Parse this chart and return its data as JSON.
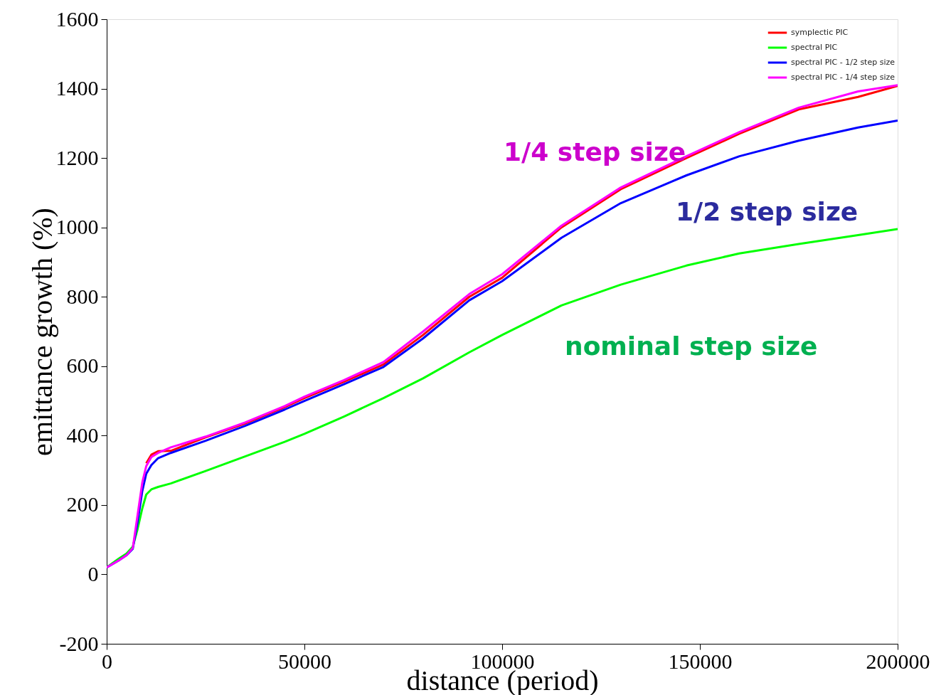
{
  "chart_data": {
    "type": "line",
    "xlabel": "distance (period)",
    "ylabel": "emittance growth (%)",
    "xlim": [
      0,
      200000
    ],
    "xticks": [
      0,
      {
        "value": 50000,
        "label": "50000"
      },
      {
        "value": 100000,
        "label": "100000"
      },
      {
        "value": 150000,
        "label": "150000"
      },
      {
        "value": 200000,
        "label": "200000"
      }
    ],
    "ylim": [
      -200,
      1600
    ],
    "yticks": [
      -200,
      0,
      200,
      400,
      600,
      800,
      {
        "value": 1000,
        "label": "1000"
      },
      {
        "value": 1200,
        "label": "1200"
      },
      {
        "value": 1400,
        "label": "1400"
      },
      {
        "value": 1600,
        "label": "1600"
      }
    ],
    "grid": false,
    "legend": "top right",
    "line_style": "solid",
    "marker": "none",
    "x": [
      0,
      3000,
      5000,
      6600,
      7800,
      9000,
      10000,
      11300,
      13000,
      16200,
      25000,
      35000,
      45000,
      50000,
      60000,
      70000,
      80000,
      91700,
      100000,
      115000,
      130000,
      146600,
      160000,
      175000,
      190000,
      200000
    ],
    "series": [
      {
        "name": "symplectic PIC",
        "color": "#ff0000",
        "values": [
          null,
          null,
          null,
          null,
          null,
          null,
          320,
          345,
          355,
          356,
          395,
          435,
          482,
          508,
          555,
          605,
          690,
          800,
          855,
          1000,
          1110,
          1200,
          1270,
          1340,
          1376,
          1408
        ]
      },
      {
        "name": "spectral PIC",
        "color": "#00ff00",
        "values": [
          20,
          45,
          60,
          80,
          130,
          190,
          230,
          245,
          252,
          262,
          298,
          340,
          382,
          405,
          455,
          508,
          565,
          640,
          690,
          775,
          835,
          890,
          925,
          952,
          978,
          995
        ]
      },
      {
        "name": "spectral PIC - 1/2 step size",
        "color": "#0000ff",
        "values": [
          20,
          40,
          55,
          74,
          150,
          240,
          290,
          315,
          335,
          350,
          385,
          428,
          475,
          500,
          548,
          598,
          680,
          790,
          845,
          970,
          1070,
          1150,
          1205,
          1250,
          1288,
          1308
        ]
      },
      {
        "name": "spectral PIC - 1/4 step size",
        "color": "#ff00ff",
        "values": [
          20,
          40,
          55,
          76,
          170,
          265,
          312,
          338,
          350,
          366,
          397,
          438,
          485,
          512,
          560,
          612,
          700,
          808,
          865,
          1005,
          1115,
          1205,
          1275,
          1345,
          1392,
          1410
        ]
      }
    ],
    "annotations": [
      "1/4 step size",
      "1/2 step size",
      "nominal step size"
    ]
  }
}
